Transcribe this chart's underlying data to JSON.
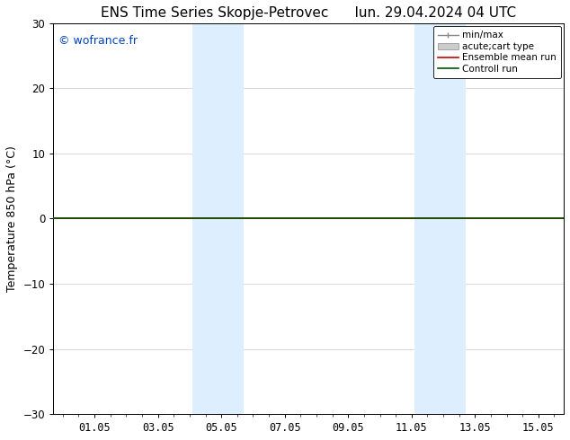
{
  "title_left": "ENS Time Series Skopje-Petrovec",
  "title_right": "lun. 29.04.2024 04 UTC",
  "ylabel": "Temperature 850 hPa (°C)",
  "watermark": "© wofrance.fr",
  "watermark_color": "#0044bb",
  "ylim": [
    -30,
    30
  ],
  "yticks": [
    -30,
    -20,
    -10,
    0,
    10,
    20,
    30
  ],
  "xtick_labels": [
    "01.05",
    "03.05",
    "05.05",
    "07.05",
    "09.05",
    "11.05",
    "13.05",
    "15.05"
  ],
  "xtick_positions": [
    1,
    3,
    5,
    7,
    9,
    11,
    13,
    15
  ],
  "x_min": -0.3,
  "x_max": 15.8,
  "shaded_bands": [
    {
      "x_start": 4.1,
      "x_end": 5.7
    },
    {
      "x_start": 11.1,
      "x_end": 12.7
    }
  ],
  "shaded_color": "#ddeeff",
  "horizontal_line_y": 0,
  "control_run_color": "#005500",
  "control_run_lw": 1.2,
  "ensemble_mean_color": "#cc0000",
  "ensemble_mean_lw": 1.2,
  "background_color": "#ffffff",
  "legend_items": [
    {
      "label": "min/max"
    },
    {
      "label": "acute;cart type"
    },
    {
      "label": "Ensemble mean run"
    },
    {
      "label": "Controll run"
    }
  ],
  "title_fontsize": 11,
  "axis_label_fontsize": 9,
  "tick_fontsize": 8.5,
  "watermark_fontsize": 9,
  "legend_fontsize": 7.5
}
